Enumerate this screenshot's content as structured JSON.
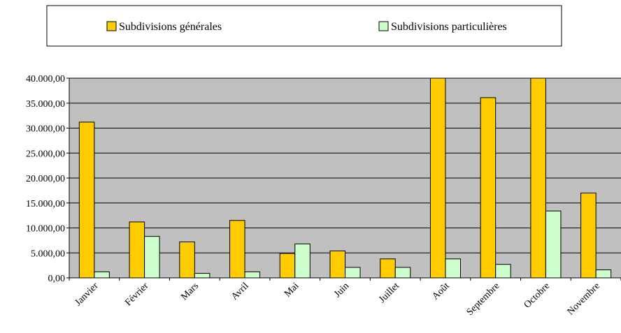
{
  "chart_data": {
    "type": "bar",
    "categories": [
      "Janvier",
      "Février",
      "Mars",
      "Avril",
      "Mai",
      "Juin",
      "Juillet",
      "Août",
      "Septembre",
      "Octobre",
      "Novembre"
    ],
    "series": [
      {
        "name": "Subdivisions générales",
        "color": "#FFCC00",
        "values": [
          31200,
          11200,
          7200,
          11500,
          4900,
          5400,
          3800,
          41000,
          36100,
          41000,
          17000
        ]
      },
      {
        "name": "Subdivisions particulières",
        "color": "#CCFFCC",
        "values": [
          1200,
          8300,
          900,
          1200,
          6800,
          2100,
          2100,
          3800,
          2700,
          13400,
          1600
        ]
      }
    ],
    "ylim": [
      0,
      40000
    ],
    "yticks": [
      0,
      5000,
      10000,
      15000,
      20000,
      25000,
      30000,
      35000,
      40000
    ],
    "ytick_labels": [
      "0,00",
      "5.000,00",
      "10.000,00",
      "15.000,00",
      "20.000,00",
      "25.000,00",
      "30.000,00",
      "35.000,00",
      "40.000,00"
    ],
    "grid": true,
    "legend_position": "top",
    "plot_background": "#C0C0C0"
  }
}
